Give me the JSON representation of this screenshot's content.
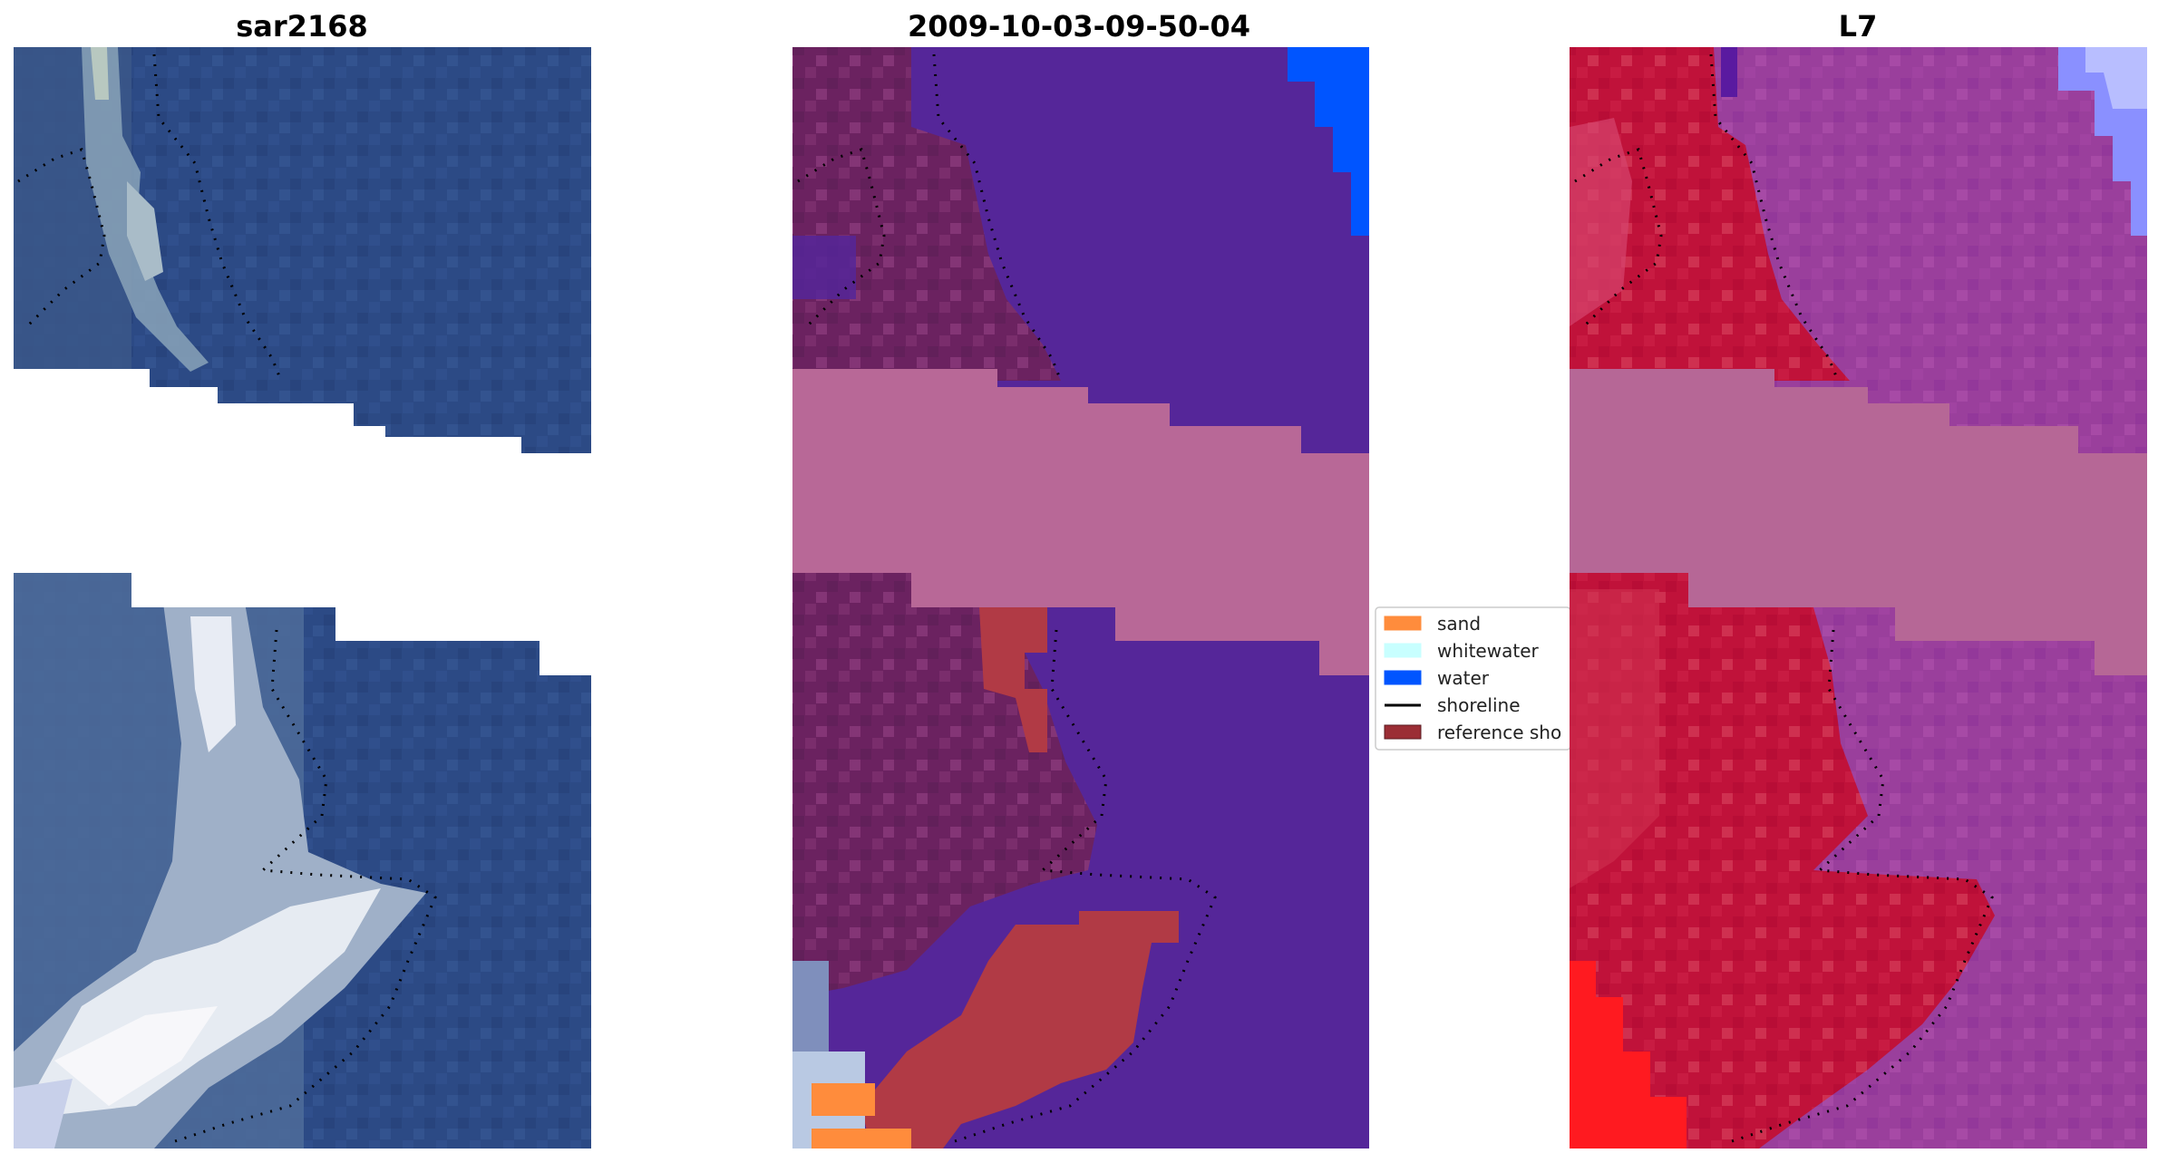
{
  "panels": [
    {
      "title": "sar2168"
    },
    {
      "title": "2009-10-03-09-50-04"
    },
    {
      "title": "L7"
    }
  ],
  "legend": {
    "items": [
      {
        "label": "sand",
        "color": "#ff8c3c",
        "kind": "patch"
      },
      {
        "label": "whitewater",
        "color": "#c8ffff",
        "kind": "patch"
      },
      {
        "label": "water",
        "color": "#0055ff",
        "kind": "patch"
      },
      {
        "label": "shoreline",
        "color": "#000000",
        "kind": "line"
      },
      {
        "label": "reference sho",
        "color": "#9b2d35",
        "kind": "patch"
      }
    ]
  },
  "colors": {
    "sea_rgb": "#2c4a85",
    "white_patch": "#ffffff",
    "classified_water": "#552699",
    "classified_land": "#6b2260",
    "classified_mask_band": "#b86897",
    "classified_water_blue": "#0055ff",
    "classified_sand_red": "#b13a45",
    "ir_red": "#c0123a",
    "ir_violet": "#9a3f9c",
    "ir_mask_band": "#b66796",
    "ir_bright_red": "#ff1a20",
    "ir_light_blue": "#8a90ff"
  }
}
